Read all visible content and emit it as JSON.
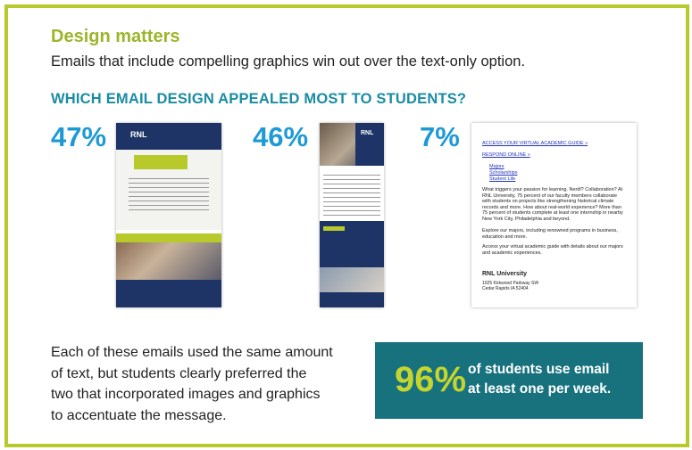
{
  "header": {
    "title": "Design matters",
    "subtitle": "Emails that include compelling graphics win out over the text-only option."
  },
  "question": "WHICH EMAIL DESIGN APPEALED MOST TO STUDENTS?",
  "emails": [
    {
      "percent": "47%",
      "logo": "RNL"
    },
    {
      "percent": "46%",
      "logo": "RNL"
    },
    {
      "percent": "7%",
      "links": [
        "ACCESS YOUR VIRTUAL ACADEMIC GUIDE »",
        "RESPOND ONLINE »"
      ],
      "bullets": [
        "Majors",
        "Scholarships",
        "Student Life"
      ],
      "paragraphs": [
        "What triggers your passion for learning. Nerdl? Collaboration? At RNL University, 75 percent of our faculty members collaborate with students on projects like strengthening historical climate records and more. How about real-world experience? More than 75 percent of students complete at least one internship in nearby New York City, Philadelphia and beyond.",
        "Explore our majors, including renowned programs in business, education and more.",
        "Access your virtual academic guide with details about our majors and academic experiences."
      ],
      "signature": "RNL University",
      "address": [
        "1025 Kirkwood Parkway SW",
        "Cedar Rapids IA 52404"
      ]
    }
  ],
  "summary": {
    "lines": [
      "Each of these emails used the same amount",
      "of text, but students clearly preferred the",
      "two that incorporated images and graphics",
      "to accentuate the message."
    ]
  },
  "stat": {
    "value": "96%",
    "lines": [
      "of students use email",
      "at least one per week."
    ]
  }
}
